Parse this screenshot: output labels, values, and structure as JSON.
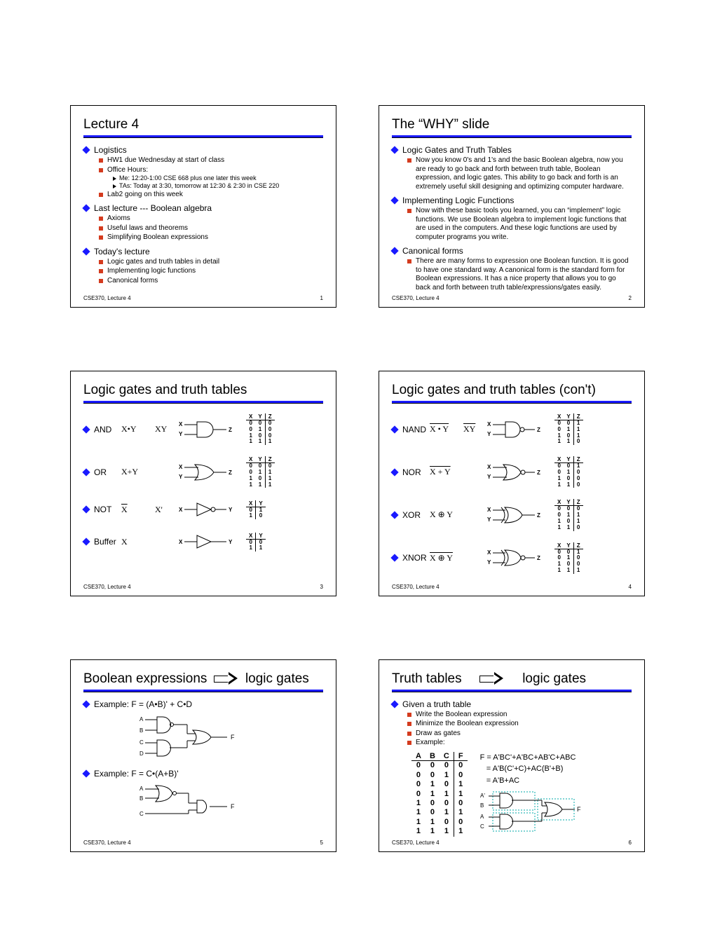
{
  "footer_text": "CSE370, Lecture 4",
  "slide1": {
    "title": "Lecture 4",
    "b1": "Logistics",
    "b1a": "HW1 due Wednesday at start of class",
    "b1b": "Office Hours:",
    "b1b1": "Me:  12:20-1:00 CSE 668 plus one later this week",
    "b1b2": "TAs: Today at 3:30, tomorrow at 12:30 & 2:30 in CSE 220",
    "b1c": "Lab2 going on this week",
    "b2": "Last lecture --- Boolean algebra",
    "b2a": "Axioms",
    "b2b": "Useful laws and theorems",
    "b2c": "Simplifying Boolean expressions",
    "b3": "Today's lecture",
    "b3a": "Logic gates and truth tables in detail",
    "b3b": "Implementing logic functions",
    "b3c": "Canonical forms",
    "page": "1"
  },
  "slide2": {
    "title": "The “WHY” slide",
    "b1": "Logic Gates and Truth Tables",
    "b1a": "Now you know 0's and 1's and the basic Boolean algebra, now you are ready to go back and forth between truth table, Boolean expression, and logic gates.  This ability to go back and forth is an extremely useful skill designing and optimizing computer hardware.",
    "b2": "Implementing Logic Functions",
    "b2a": "Now with these basic tools you learned, you can “implement” logic functions. We use Boolean algebra to implement logic functions that are used in the computers.  And these logic functions are used by computer programs you write.",
    "b3": "Canonical forms",
    "b3a": "There are many forms to expression one Boolean function.  It is good to have one standard way.  A canonical form is the standard form for Boolean expressions.  It has a nice property that allows you to go back and forth between truth table/expressions/gates easily.",
    "page": "2"
  },
  "slide3": {
    "title": "Logic gates and truth tables",
    "gates": {
      "and": {
        "name": "AND",
        "e1": "X•Y",
        "e2": "XY"
      },
      "or": {
        "name": "OR",
        "e1": "X+Y",
        "e2": ""
      },
      "not": {
        "name": "NOT",
        "e1": "X",
        "e2": "X'"
      },
      "buf": {
        "name": "Buffer",
        "e1": "X",
        "e2": ""
      }
    },
    "tt_and": {
      "h": [
        "X",
        "Y",
        "Z"
      ],
      "r": [
        [
          "0",
          "0",
          "0"
        ],
        [
          "0",
          "1",
          "0"
        ],
        [
          "1",
          "0",
          "0"
        ],
        [
          "1",
          "1",
          "1"
        ]
      ]
    },
    "tt_or": {
      "h": [
        "X",
        "Y",
        "Z"
      ],
      "r": [
        [
          "0",
          "0",
          "0"
        ],
        [
          "0",
          "1",
          "1"
        ],
        [
          "1",
          "0",
          "1"
        ],
        [
          "1",
          "1",
          "1"
        ]
      ]
    },
    "tt_not": {
      "h": [
        "X",
        "Y"
      ],
      "r": [
        [
          "0",
          "1"
        ],
        [
          "1",
          "0"
        ]
      ]
    },
    "tt_buf": {
      "h": [
        "X",
        "Y"
      ],
      "r": [
        [
          "0",
          "0"
        ],
        [
          "1",
          "1"
        ]
      ]
    },
    "page": "3"
  },
  "slide4": {
    "title": "Logic gates and truth tables (con't)",
    "gates": {
      "nand": {
        "name": "NAND",
        "e1": "X • Y",
        "e2": "XY"
      },
      "nor": {
        "name": "NOR",
        "e1": "X + Y",
        "e2": ""
      },
      "xor": {
        "name": "XOR",
        "e1": "X ⊕ Y",
        "e2": ""
      },
      "xnor": {
        "name": "XNOR",
        "e1": "X ⊕ Y",
        "e2": ""
      }
    },
    "tt_nand": {
      "h": [
        "X",
        "Y",
        "Z"
      ],
      "r": [
        [
          "0",
          "0",
          "1"
        ],
        [
          "0",
          "1",
          "1"
        ],
        [
          "1",
          "0",
          "1"
        ],
        [
          "1",
          "1",
          "0"
        ]
      ]
    },
    "tt_nor": {
      "h": [
        "X",
        "Y",
        "Z"
      ],
      "r": [
        [
          "0",
          "0",
          "1"
        ],
        [
          "0",
          "1",
          "0"
        ],
        [
          "1",
          "0",
          "0"
        ],
        [
          "1",
          "1",
          "0"
        ]
      ]
    },
    "tt_xor": {
      "h": [
        "X",
        "Y",
        "Z"
      ],
      "r": [
        [
          "0",
          "0",
          "0"
        ],
        [
          "0",
          "1",
          "1"
        ],
        [
          "1",
          "0",
          "1"
        ],
        [
          "1",
          "1",
          "0"
        ]
      ]
    },
    "tt_xnor": {
      "h": [
        "X",
        "Y",
        "Z"
      ],
      "r": [
        [
          "0",
          "0",
          "1"
        ],
        [
          "0",
          "1",
          "0"
        ],
        [
          "1",
          "0",
          "0"
        ],
        [
          "1",
          "1",
          "1"
        ]
      ]
    },
    "page": "4"
  },
  "slide5": {
    "title_a": "Boolean expressions",
    "title_b": "logic gates",
    "ex1": "Example: F = (A•B)' + C•D",
    "ex2": "Example: F = C•(A+B)'",
    "labels": {
      "A": "A",
      "B": "B",
      "C": "C",
      "D": "D",
      "F": "F"
    },
    "page": "5"
  },
  "slide6": {
    "title_a": "Truth tables",
    "title_b": "logic gates",
    "b1": "Given a truth table",
    "b1a": "Write the Boolean expression",
    "b1b": "Minimize the Boolean expression",
    "b1c": "Draw as gates",
    "b1d": "Example:",
    "tt": {
      "h": [
        "A",
        "B",
        "C",
        "F"
      ],
      "r": [
        [
          "0",
          "0",
          "0",
          "0"
        ],
        [
          "0",
          "0",
          "1",
          "0"
        ],
        [
          "0",
          "1",
          "0",
          "1"
        ],
        [
          "0",
          "1",
          "1",
          "1"
        ],
        [
          "1",
          "0",
          "0",
          "0"
        ],
        [
          "1",
          "0",
          "1",
          "1"
        ],
        [
          "1",
          "1",
          "0",
          "0"
        ],
        [
          "1",
          "1",
          "1",
          "1"
        ]
      ]
    },
    "eq1": "F = A'BC'+A'BC+AB'C+ABC",
    "eq2": "   = A'B(C'+C)+AC(B'+B)",
    "eq3": "   = A'B+AC",
    "labels": {
      "Ap": "A'",
      "B": "B",
      "A": "A",
      "C": "C",
      "F": "F"
    },
    "page": "6"
  }
}
